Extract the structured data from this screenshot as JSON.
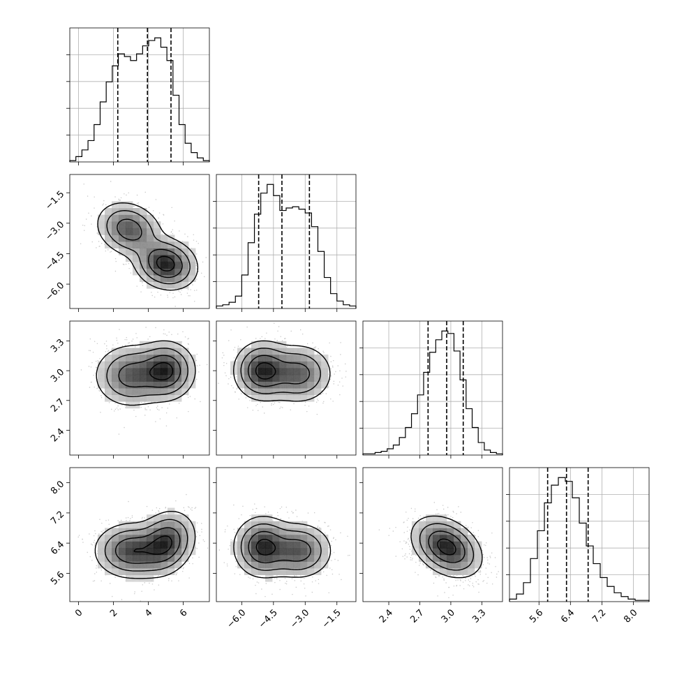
{
  "chart_data": {
    "type": "corner",
    "variables": [
      {
        "ticks": [
          0,
          2,
          4,
          6
        ],
        "tick_labels": [
          "0",
          "2",
          "4",
          "6"
        ],
        "range": [
          -0.5,
          7.5
        ],
        "quantiles": [
          2.25,
          3.95,
          5.3
        ]
      },
      {
        "ticks": [
          -6.0,
          -4.5,
          -3.0,
          -1.5
        ],
        "tick_labels": [
          "−6.0",
          "−4.5",
          "−3.0",
          "−1.5"
        ],
        "range": [
          -7.2,
          -0.6
        ],
        "quantiles": [
          -5.2,
          -4.1,
          -2.8
        ]
      },
      {
        "ticks": [
          2.4,
          2.7,
          3.0,
          3.3
        ],
        "tick_labels": [
          "2.4",
          "2.7",
          "3.0",
          "3.3"
        ],
        "range": [
          2.15,
          3.5
        ],
        "quantiles": [
          2.78,
          2.96,
          3.12
        ]
      },
      {
        "ticks": [
          5.6,
          6.4,
          7.2,
          8.0
        ],
        "tick_labels": [
          "5.6",
          "6.4",
          "7.2",
          "8.0"
        ],
        "range": [
          4.85,
          8.4
        ],
        "quantiles": [
          5.82,
          6.3,
          6.85
        ]
      }
    ],
    "histograms": [
      {
        "variable": 0,
        "counts": [
          0.01,
          0.04,
          0.09,
          0.16,
          0.28,
          0.45,
          0.6,
          0.72,
          0.81,
          0.79,
          0.76,
          0.81,
          0.87,
          0.91,
          0.93,
          0.86,
          0.76,
          0.5,
          0.28,
          0.14,
          0.07,
          0.03,
          0.01
        ]
      },
      {
        "variable": 1,
        "counts": [
          0.02,
          0.03,
          0.05,
          0.1,
          0.27,
          0.53,
          0.76,
          0.93,
          1.0,
          0.91,
          0.79,
          0.81,
          0.82,
          0.8,
          0.77,
          0.66,
          0.46,
          0.25,
          0.12,
          0.06,
          0.03,
          0.02
        ]
      },
      {
        "variable": 2,
        "counts": [
          0.01,
          0.01,
          0.02,
          0.03,
          0.05,
          0.08,
          0.14,
          0.22,
          0.33,
          0.48,
          0.66,
          0.82,
          0.92,
          0.99,
          0.97,
          0.83,
          0.6,
          0.37,
          0.22,
          0.1,
          0.04,
          0.02,
          0.01
        ]
      },
      {
        "variable": 3,
        "counts": [
          0.02,
          0.06,
          0.15,
          0.34,
          0.56,
          0.78,
          0.92,
          0.98,
          0.95,
          0.82,
          0.62,
          0.44,
          0.3,
          0.19,
          0.12,
          0.07,
          0.04,
          0.02,
          0.01,
          0.01
        ]
      }
    ],
    "joint_panels": [
      {
        "x_variable": 0,
        "y_variable": 1,
        "components": [
          {
            "center": [
              2.9,
              -3.3
            ],
            "sd": [
              0.9,
              0.65
            ],
            "rho": -0.2,
            "weight": 0.45
          },
          {
            "center": [
              5.0,
              -5.0
            ],
            "sd": [
              0.85,
              0.6
            ],
            "rho": -0.15,
            "weight": 0.55
          }
        ]
      },
      {
        "x_variable": 0,
        "y_variable": 2,
        "components": [
          {
            "center": [
              3.0,
              2.95
            ],
            "sd": [
              1.0,
              0.15
            ],
            "rho": 0.0,
            "weight": 0.5
          },
          {
            "center": [
              5.0,
              3.0
            ],
            "sd": [
              0.8,
              0.14
            ],
            "rho": 0.0,
            "weight": 0.5
          }
        ]
      },
      {
        "x_variable": 1,
        "y_variable": 2,
        "components": [
          {
            "center": [
              -5.0,
              3.0
            ],
            "sd": [
              0.65,
              0.14
            ],
            "rho": 0.0,
            "weight": 0.55
          },
          {
            "center": [
              -3.3,
              2.97
            ],
            "sd": [
              0.75,
              0.14
            ],
            "rho": 0.0,
            "weight": 0.45
          }
        ]
      },
      {
        "x_variable": 0,
        "y_variable": 3,
        "components": [
          {
            "center": [
              3.0,
              6.2
            ],
            "sd": [
              1.0,
              0.35
            ],
            "rho": 0.0,
            "weight": 0.5
          },
          {
            "center": [
              5.0,
              6.4
            ],
            "sd": [
              0.8,
              0.4
            ],
            "rho": 0.2,
            "weight": 0.5
          }
        ]
      },
      {
        "x_variable": 1,
        "y_variable": 3,
        "components": [
          {
            "center": [
              -5.0,
              6.3
            ],
            "sd": [
              0.65,
              0.38
            ],
            "rho": 0.0,
            "weight": 0.55
          },
          {
            "center": [
              -3.3,
              6.2
            ],
            "sd": [
              0.75,
              0.35
            ],
            "rho": 0.0,
            "weight": 0.45
          }
        ]
      },
      {
        "x_variable": 2,
        "y_variable": 3,
        "components": [
          {
            "center": [
              2.96,
              6.3
            ],
            "sd": [
              0.16,
              0.38
            ],
            "rho": -0.35,
            "weight": 1.0
          }
        ]
      }
    ]
  }
}
